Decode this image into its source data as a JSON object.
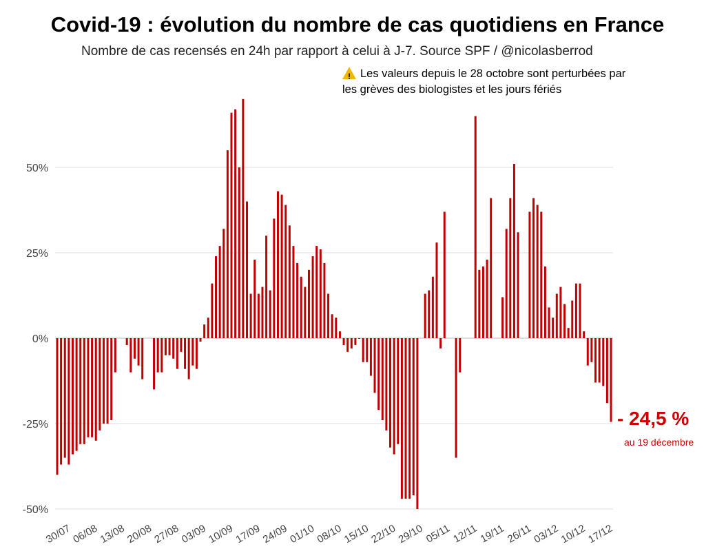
{
  "chart_data": {
    "type": "bar",
    "title": "Covid-19 : évolution du nombre de cas quotidiens en France",
    "subtitle": "Nombre de cas recensés en 24h par rapport à celui à J-7. Source SPF / @nicolasberrod",
    "note_line1": "Les valeurs depuis le 28 octobre sont perturbées par",
    "note_line2": "les grèves des biologistes et les jours fériés",
    "ylim": [
      -50,
      70
    ],
    "yticks": [
      50,
      25,
      0,
      -25,
      -50
    ],
    "ytick_labels": [
      "50%",
      "25%",
      "0%",
      "-25%",
      "-50%"
    ],
    "xtick_labels": [
      "30/07",
      "06/08",
      "13/08",
      "20/08",
      "27/08",
      "03/09",
      "10/09",
      "17/09",
      "24/09",
      "01/10",
      "08/10",
      "15/10",
      "22/10",
      "29/10",
      "05/11",
      "12/11",
      "19/11",
      "26/11",
      "03/12",
      "10/12",
      "17/12"
    ],
    "start_date": "30/07",
    "end_date": "19/12",
    "values": [
      -40,
      -37,
      -35,
      -37,
      -34,
      -33,
      -31,
      -31,
      -29,
      -29,
      -30,
      -27,
      -25,
      -25,
      -24,
      -10,
      null,
      null,
      -2,
      -10,
      -6,
      -8,
      -12,
      null,
      null,
      -15,
      -10,
      -10,
      -5,
      -5,
      -6,
      -9,
      -4,
      -9,
      -12,
      -8,
      -9,
      -1,
      4,
      6,
      16,
      24,
      27,
      32,
      55,
      66,
      67,
      50,
      70,
      40,
      13,
      23,
      13,
      15,
      30,
      14,
      35,
      43,
      42,
      39,
      33,
      27,
      22,
      18,
      15,
      20,
      24,
      27,
      26,
      22,
      13,
      7,
      6,
      2,
      -2,
      -4,
      -3,
      -2,
      0,
      -7,
      -7,
      -11,
      -16,
      -21,
      -24,
      -27,
      -32,
      -34,
      -31,
      -47,
      -47,
      -47,
      -46,
      -50,
      null,
      13,
      14,
      18,
      28,
      -3,
      37,
      null,
      null,
      -35,
      -10,
      null,
      null,
      null,
      65,
      20,
      21,
      23,
      41,
      null,
      null,
      12,
      32,
      41,
      51,
      31,
      null,
      null,
      37,
      41,
      39,
      37,
      21,
      9,
      6,
      13,
      15,
      10,
      3,
      11,
      16,
      16,
      2,
      -8,
      -7,
      -13,
      -13,
      -14,
      -19,
      -24.5
    ],
    "series_color": "#c00000",
    "last_value_label": "- 24,5 %",
    "last_value_date_label": "au 19 décembre"
  }
}
